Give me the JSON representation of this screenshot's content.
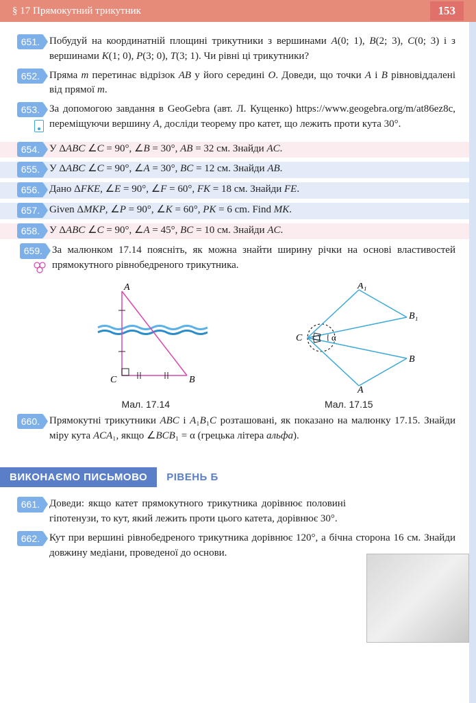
{
  "header": {
    "section": "§ 17  Прямокутний трикутник",
    "page": "153"
  },
  "problems": [
    {
      "n": "651.",
      "t": "Побудуй на координатній площині трикутники з вершинами <span class='it'>A</span>(0; 1), <span class='it'>B</span>(2; 3), <span class='it'>C</span>(0; 3) і з вершинами <span class='it'>K</span>(1; 0), <span class='it'>P</span>(3; 0), <span class='it'>T</span>(3; 1). Чи рівні ці трикутники?"
    },
    {
      "n": "652.",
      "t": "Пряма <span class='it'>m</span> перетинає відрізок <span class='it'>AB</span> у його середині <span class='it'>O</span>. Доведи, що точки <span class='it'>A</span> і <span class='it'>B</span> рівновіддалені від прямої <span class='it'>m</span>."
    },
    {
      "n": "653.",
      "t": "За допомогою завдання в GeoGebra (авт. Л. Кущенко) https://www.geogebra.org/m/at86ez8c, переміщуючи вершину <span class='it'>A</span>, досліди теорему про катет, що лежить проти кута 30°.",
      "icon": "device"
    },
    {
      "n": "654.",
      "t": "У Δ<span class='it'>ABC</span> ∠<span class='it'>C</span> = 90°, ∠<span class='it'>B</span> = 30°, <span class='it'>AB</span> = 32 см. Знайди <span class='it'>AC</span>.",
      "hl": "pink"
    },
    {
      "n": "655.",
      "t": "У Δ<span class='it'>ABC</span> ∠<span class='it'>C</span> = 90°, ∠<span class='it'>A</span> = 30°, <span class='it'>BC</span> = 12 см. Знайди <span class='it'>AB</span>.",
      "hl": "blue"
    },
    {
      "n": "656.",
      "t": "Дано Δ<span class='it'>FKE</span>, ∠<span class='it'>E</span> = 90°, ∠<span class='it'>F</span> = 60°, <span class='it'>FK</span> = 18 см. Знайди <span class='it'>FE</span>.",
      "hl": "blue"
    },
    {
      "n": "657.",
      "t": "Given Δ<span class='it'>MKP</span>, ∠<span class='it'>P</span> = 90°, ∠<span class='it'>K</span> = 60°, <span class='it'>PK</span> = 6 cm. Find <span class='it'>MK</span>.",
      "hl": "blue"
    },
    {
      "n": "658.",
      "t": "У Δ<span class='it'>ABC</span> ∠<span class='it'>C</span> = 90°, ∠<span class='it'>A</span> = 45°, <span class='it'>BC</span> = 10 см. Знайди <span class='it'>AC</span>.",
      "hl": "pink"
    },
    {
      "n": "659.",
      "t": "За малюнком 17.14 поясніть, як можна знайти ширину річки на основі властивостей прямокутного рівнобедреного трикутника.",
      "icon": "circles"
    }
  ],
  "figcap1": "Мал. 17.14",
  "figcap2": "Мал. 17.15",
  "fig1": {
    "labels": {
      "A": "A",
      "B": "B",
      "C": "C"
    },
    "colors": {
      "triangle": "#d946b0",
      "water": "#5ab0e8",
      "water2": "#2a8cc9"
    }
  },
  "fig2": {
    "labels": {
      "A": "A",
      "A1": "A₁",
      "B": "B",
      "B1": "B₁",
      "C": "C",
      "alpha": "α"
    },
    "colors": {
      "lines": "#3aa8d8"
    }
  },
  "p660": {
    "n": "660.",
    "t": "Прямокутні трикутники <span class='it'>ABC</span> і <span class='it'>A</span>₁<span class='it'>B</span>₁<span class='it'>C</span> розташовані, як показано на малюнку 17.15. Знайди міру кута <span class='it'>ACA</span>₁, якщо ∠<span class='it'>BCB</span>₁ = α (грецька літера <span class='it'>альфа</span>)."
  },
  "band": {
    "title": "ВИКОНАЄМО ПИСЬМОВО",
    "level": "РІВЕНЬ Б"
  },
  "after": [
    {
      "n": "661.",
      "t": "Доведи: якщо катет прямокутного трикутника дорівнює половині гіпотенузи, то кут, який лежить проти цього катета, дорівнює 30°."
    },
    {
      "n": "662.",
      "t": "Кут при вершині рівнобедреного трикутника дорівнює 120°, а бічна сторона 16 см. Знайди довжину медіани, проведеної до основи."
    }
  ]
}
